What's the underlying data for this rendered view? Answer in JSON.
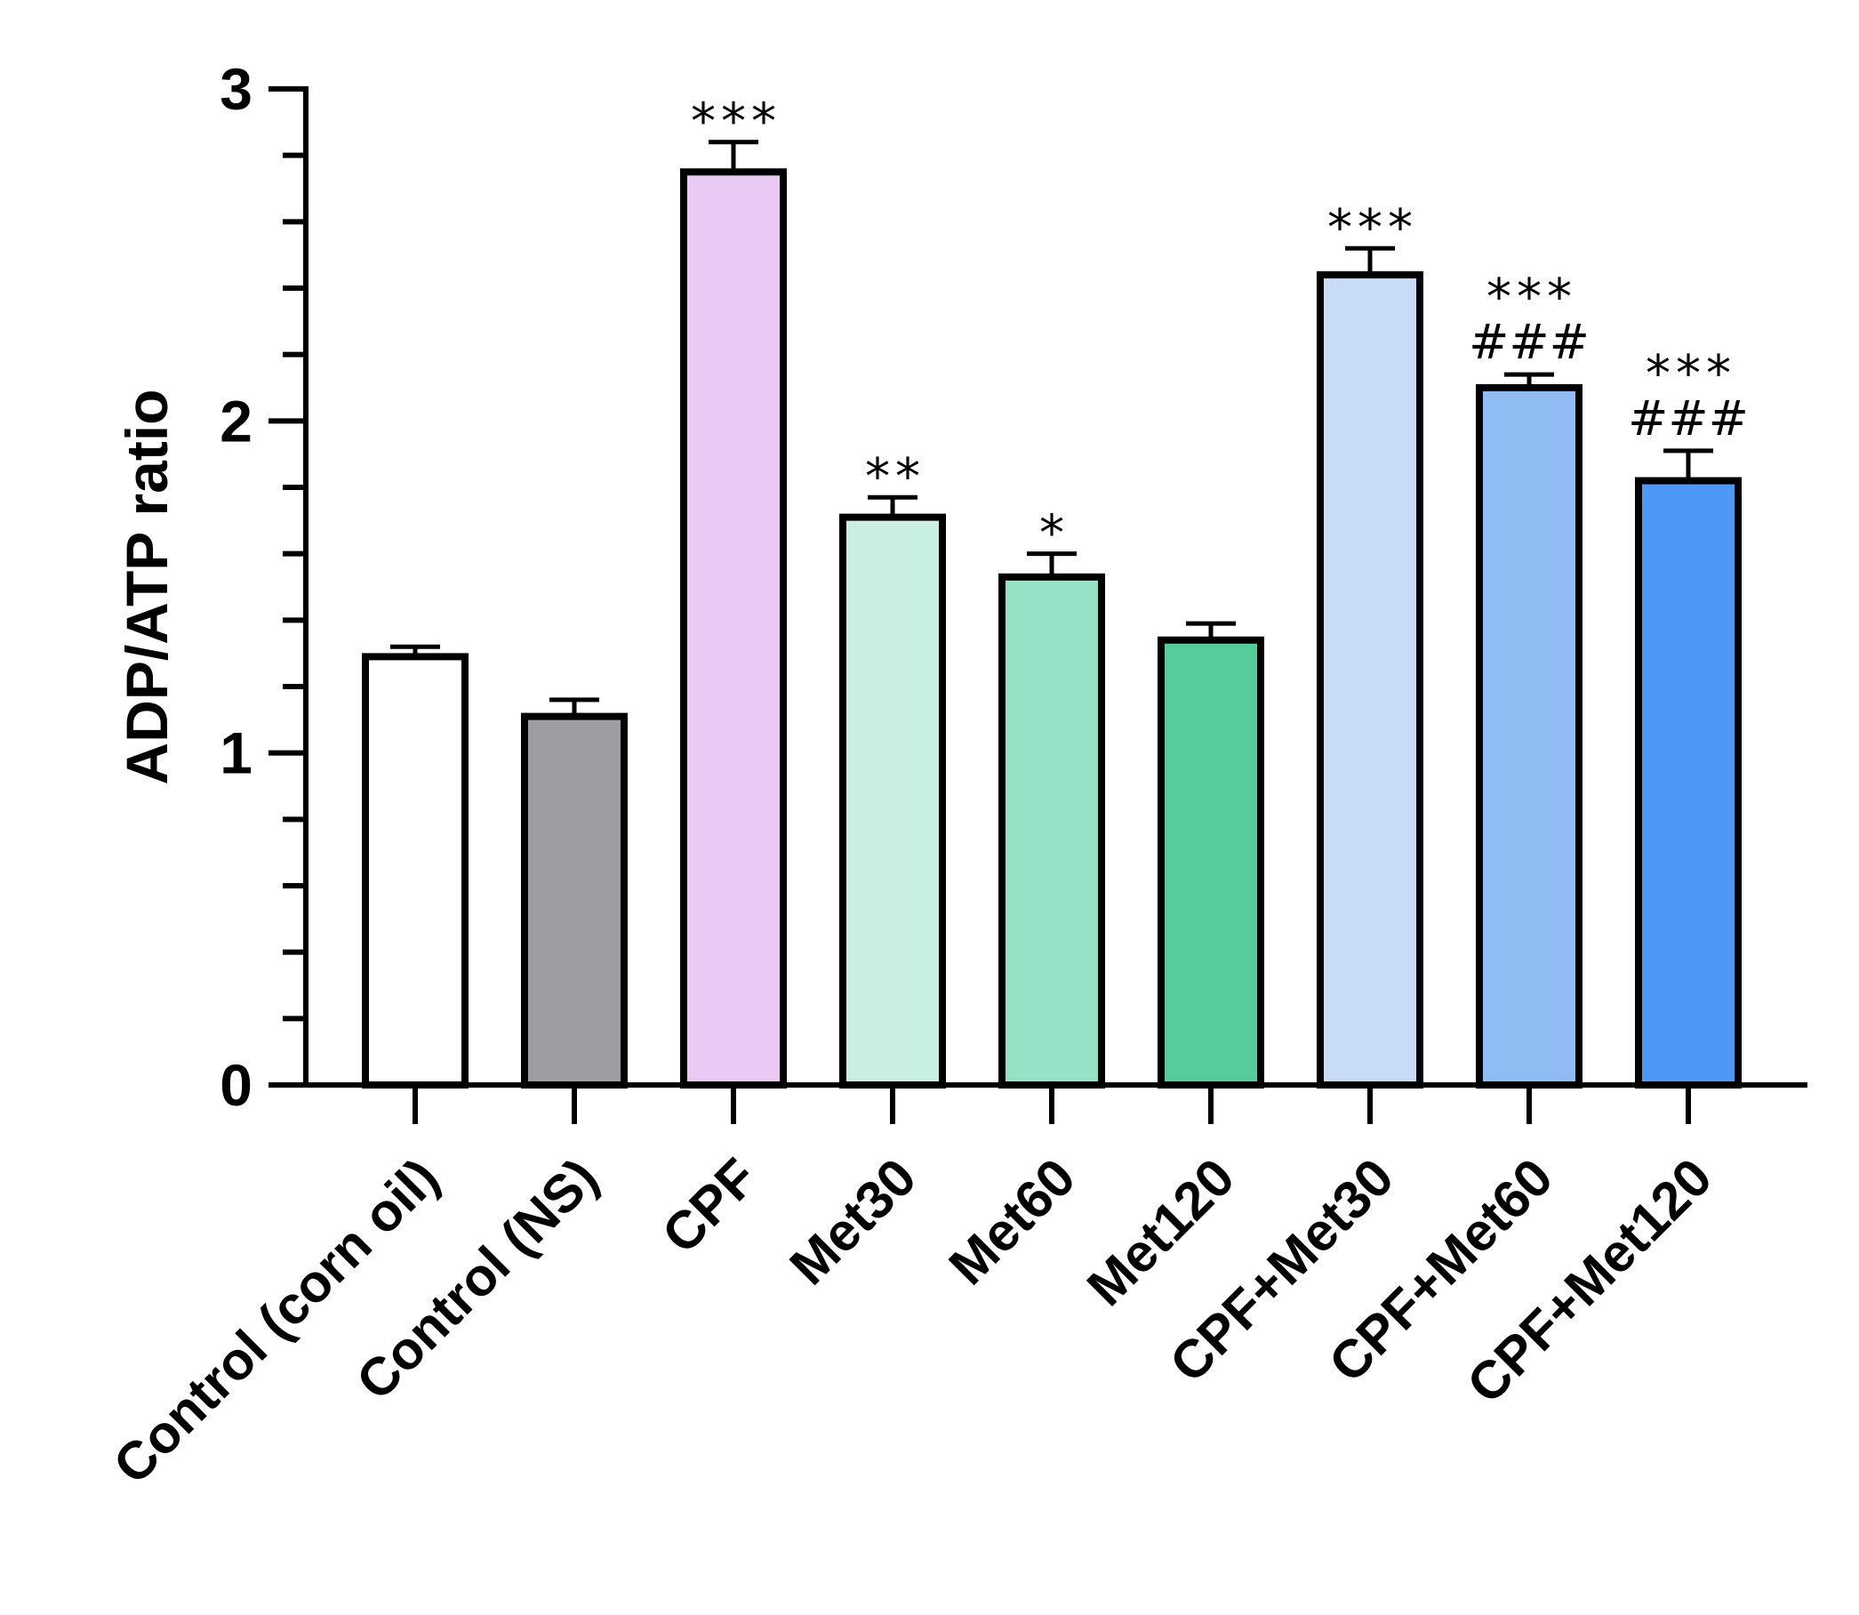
{
  "chart_data": {
    "type": "bar",
    "title": "",
    "xlabel": "",
    "ylabel": "ADP/ATP ratio",
    "ylim": [
      0,
      3
    ],
    "yticks": [
      0,
      1,
      2,
      3
    ],
    "yticks_labels": [
      "0",
      "1",
      "2",
      "3"
    ],
    "minor_step": 0.2,
    "categories": [
      "Control (corn oil)",
      "Control (NS)",
      "CPF",
      "Met30",
      "Met60",
      "Met120",
      "CPF+Met30",
      "CPF+Met60",
      "CPF+Met120"
    ],
    "values": [
      1.29,
      1.11,
      2.75,
      1.71,
      1.53,
      1.34,
      2.44,
      2.1,
      1.82
    ],
    "errors": [
      0.03,
      0.05,
      0.09,
      0.06,
      0.07,
      0.05,
      0.08,
      0.04,
      0.09
    ],
    "colors": [
      "#ffffff",
      "#9e9ea2",
      "#ebc9f5",
      "#c9efe4",
      "#96e2c6",
      "#55cc9a",
      "#c8dcf7",
      "#8fbcf3",
      "#4d97f5"
    ],
    "significance": [
      "",
      "",
      "***",
      "**",
      "*",
      "",
      "***",
      "***",
      "***"
    ],
    "significance_vs_cpf": [
      "",
      "",
      "",
      "",
      "",
      "",
      "",
      "###",
      "###"
    ]
  }
}
